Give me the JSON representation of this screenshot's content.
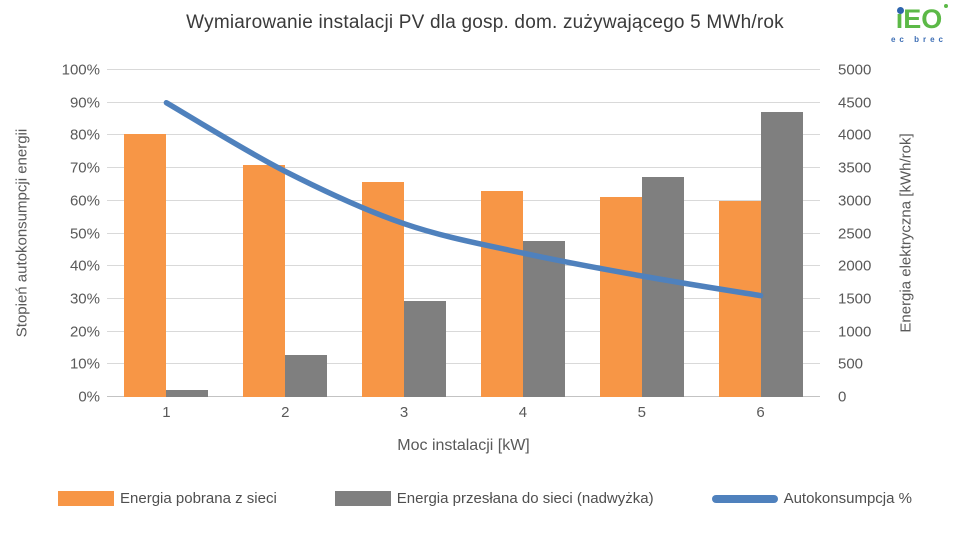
{
  "title": "Wymiarowanie instalacji PV dla gosp. dom. zużywającego 5 MWh/rok",
  "logo": {
    "name": "iEO",
    "subtext": "ec brec"
  },
  "colors": {
    "bar_orange": "#f79646",
    "bar_gray": "#7f7f7f",
    "line_blue": "#4f81bd",
    "gridline": "#d9d9d9",
    "text_gray": "#595959",
    "logo_green": "#5cb947",
    "logo_blue": "#2d64ae"
  },
  "chart_data": {
    "type": "bar",
    "subtype": "combo-bar-line-dual-axis",
    "categories": [
      "1",
      "2",
      "3",
      "4",
      "5",
      "6"
    ],
    "series": [
      {
        "name": "Energia pobrana z sieci",
        "type": "bar",
        "axis": "right",
        "color": "#f79646",
        "values": [
          4020,
          3540,
          3290,
          3150,
          3060,
          3000
        ]
      },
      {
        "name": "Energia przesłana do sieci (nadwyżka)",
        "type": "bar",
        "axis": "right",
        "color": "#7f7f7f",
        "values": [
          100,
          650,
          1470,
          2390,
          3370,
          4360
        ]
      },
      {
        "name": "Autokonsumpcja %",
        "type": "line",
        "axis": "left",
        "color": "#4f81bd",
        "values": [
          90,
          69,
          53,
          44,
          37,
          31
        ]
      }
    ],
    "left_axis": {
      "title": "Stopień autokonsumpcji energii",
      "min": 0,
      "max": 100,
      "ticks": [
        "0%",
        "10%",
        "20%",
        "30%",
        "40%",
        "50%",
        "60%",
        "70%",
        "80%",
        "90%",
        "100%"
      ]
    },
    "right_axis": {
      "title": "Energia elektryczna [kWh/rok]",
      "min": 0,
      "max": 5000,
      "ticks": [
        "0",
        "500",
        "1000",
        "1500",
        "2000",
        "2500",
        "3000",
        "3500",
        "4000",
        "4500",
        "5000"
      ]
    },
    "x_axis": {
      "title": "Moc instalacji [kW]"
    },
    "grid": true,
    "legend_position": "bottom"
  }
}
